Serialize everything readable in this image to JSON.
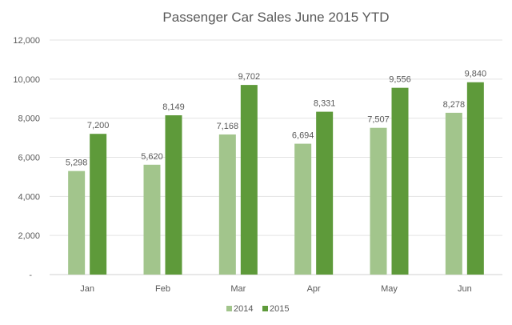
{
  "chart_data": {
    "type": "bar",
    "title": "Passenger Car Sales June 2015 YTD",
    "categories": [
      "Jan",
      "Feb",
      "Mar",
      "Apr",
      "May",
      "Jun"
    ],
    "series": [
      {
        "name": "2014",
        "color": "#a2c58c",
        "values": [
          5298,
          5620,
          7168,
          6694,
          7507,
          8278
        ],
        "labels": [
          "5,298",
          "5,620",
          "7,168",
          "6,694",
          "7,507",
          "8,278"
        ]
      },
      {
        "name": "2015",
        "color": "#5e9a3a",
        "values": [
          7200,
          8149,
          9702,
          8331,
          9556,
          9840
        ],
        "labels": [
          "7,200",
          "8,149",
          "9,702",
          "8,331",
          "9,556",
          "9,840"
        ]
      }
    ],
    "ylim": [
      0,
      12000
    ],
    "yticks": [
      0,
      2000,
      4000,
      6000,
      8000,
      10000,
      12000
    ],
    "ytick_labels": [
      "-",
      "2,000",
      "4,000",
      "6,000",
      "8,000",
      "10,000",
      "12,000"
    ],
    "grid": true,
    "legend": "bottom",
    "xlabel": "",
    "ylabel": ""
  }
}
